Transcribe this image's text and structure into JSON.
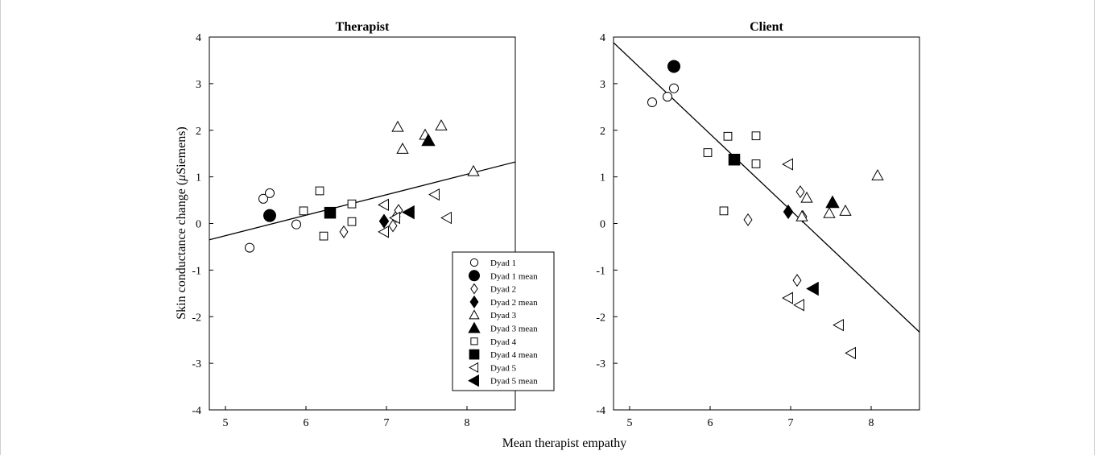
{
  "figure": {
    "xlabel": "Mean therapist empathy",
    "ylabel_main": "Skin conductance change (",
    "ylabel_mu": "μ",
    "ylabel_unit": "Siemens)"
  },
  "chart_data": [
    {
      "type": "scatter",
      "title": "Therapist",
      "xlim": [
        4.8,
        8.6
      ],
      "ylim": [
        -4,
        4
      ],
      "xticks": [
        5,
        6,
        7,
        8
      ],
      "yticks": [
        -4,
        -3,
        -2,
        -1,
        0,
        1,
        2,
        3,
        4
      ],
      "grid": false,
      "legend_position": "bottom-right",
      "fit_line": {
        "x": [
          4.8,
          8.6
        ],
        "y": [
          -0.35,
          1.32
        ]
      },
      "series": [
        {
          "name": "Dyad 1",
          "marker": "circle",
          "filled": false,
          "points": [
            [
              5.3,
              -0.52
            ],
            [
              5.47,
              0.53
            ],
            [
              5.55,
              0.65
            ],
            [
              5.88,
              -0.02
            ]
          ]
        },
        {
          "name": "Dyad 1 mean",
          "marker": "circle",
          "filled": true,
          "points": [
            [
              5.55,
              0.17
            ]
          ]
        },
        {
          "name": "Dyad 2",
          "marker": "diamond",
          "filled": false,
          "points": [
            [
              6.47,
              -0.18
            ],
            [
              7.08,
              -0.05
            ],
            [
              7.12,
              0.15
            ],
            [
              7.15,
              0.28
            ]
          ]
        },
        {
          "name": "Dyad 2 mean",
          "marker": "diamond",
          "filled": true,
          "points": [
            [
              6.97,
              0.05
            ]
          ]
        },
        {
          "name": "Dyad 3",
          "marker": "triangle-up",
          "filled": false,
          "points": [
            [
              7.14,
              2.07
            ],
            [
              7.2,
              1.6
            ],
            [
              7.48,
              1.9
            ],
            [
              7.68,
              2.1
            ],
            [
              8.08,
              1.12
            ]
          ]
        },
        {
          "name": "Dyad 3 mean",
          "marker": "triangle-up",
          "filled": true,
          "points": [
            [
              7.52,
              1.78
            ]
          ]
        },
        {
          "name": "Dyad 4",
          "marker": "square",
          "filled": false,
          "points": [
            [
              5.97,
              0.27
            ],
            [
              6.17,
              0.7
            ],
            [
              6.22,
              -0.27
            ],
            [
              6.57,
              0.42
            ],
            [
              6.57,
              0.04
            ]
          ]
        },
        {
          "name": "Dyad 4 mean",
          "marker": "square",
          "filled": true,
          "points": [
            [
              6.3,
              0.23
            ]
          ]
        },
        {
          "name": "Dyad 5",
          "marker": "triangle-left",
          "filled": false,
          "points": [
            [
              6.97,
              0.4
            ],
            [
              6.97,
              -0.18
            ],
            [
              7.11,
              0.12
            ],
            [
              7.6,
              0.62
            ],
            [
              7.75,
              0.12
            ]
          ]
        },
        {
          "name": "Dyad 5 mean",
          "marker": "triangle-left",
          "filled": true,
          "points": [
            [
              7.28,
              0.24
            ]
          ]
        }
      ]
    },
    {
      "type": "scatter",
      "title": "Client",
      "xlim": [
        4.8,
        8.6
      ],
      "ylim": [
        -4,
        4
      ],
      "xticks": [
        5,
        6,
        7,
        8
      ],
      "yticks": [
        -4,
        -3,
        -2,
        -1,
        0,
        1,
        2,
        3,
        4
      ],
      "grid": false,
      "fit_line": {
        "x": [
          4.8,
          8.6
        ],
        "y": [
          3.88,
          -2.33
        ]
      },
      "series": [
        {
          "name": "Dyad 1",
          "marker": "circle",
          "filled": false,
          "points": [
            [
              5.28,
              2.6
            ],
            [
              5.47,
              2.72
            ],
            [
              5.55,
              2.9
            ]
          ]
        },
        {
          "name": "Dyad 1 mean",
          "marker": "circle",
          "filled": true,
          "points": [
            [
              5.55,
              3.37
            ]
          ]
        },
        {
          "name": "Dyad 2",
          "marker": "diamond",
          "filled": false,
          "points": [
            [
              6.47,
              0.08
            ],
            [
              7.08,
              -1.22
            ],
            [
              7.12,
              0.68
            ],
            [
              7.15,
              0.15
            ]
          ]
        },
        {
          "name": "Dyad 2 mean",
          "marker": "diamond",
          "filled": true,
          "points": [
            [
              6.97,
              0.25
            ]
          ]
        },
        {
          "name": "Dyad 3",
          "marker": "triangle-up",
          "filled": false,
          "points": [
            [
              7.14,
              0.15
            ],
            [
              7.2,
              0.55
            ],
            [
              7.48,
              0.22
            ],
            [
              7.68,
              0.27
            ],
            [
              8.08,
              1.03
            ]
          ]
        },
        {
          "name": "Dyad 3 mean",
          "marker": "triangle-up",
          "filled": true,
          "points": [
            [
              7.52,
              0.45
            ]
          ]
        },
        {
          "name": "Dyad 4",
          "marker": "square",
          "filled": false,
          "points": [
            [
              5.97,
              1.52
            ],
            [
              6.22,
              1.87
            ],
            [
              6.57,
              1.88
            ],
            [
              6.57,
              1.28
            ],
            [
              6.17,
              0.27
            ]
          ]
        },
        {
          "name": "Dyad 4 mean",
          "marker": "square",
          "filled": true,
          "points": [
            [
              6.3,
              1.37
            ]
          ]
        },
        {
          "name": "Dyad 5",
          "marker": "triangle-left",
          "filled": false,
          "points": [
            [
              6.97,
              1.27
            ],
            [
              6.97,
              -1.6
            ],
            [
              7.11,
              -1.75
            ],
            [
              7.6,
              -2.18
            ],
            [
              7.75,
              -2.78
            ]
          ]
        },
        {
          "name": "Dyad 5 mean",
          "marker": "triangle-left",
          "filled": true,
          "points": [
            [
              7.28,
              -1.4
            ]
          ]
        }
      ]
    }
  ]
}
